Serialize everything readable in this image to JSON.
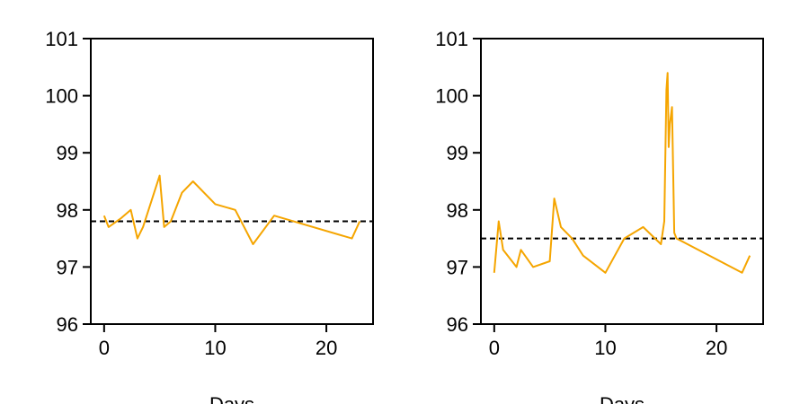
{
  "chart_data": [
    {
      "type": "line",
      "xlabel": "Days",
      "ylabel": "",
      "xlim": [
        -1.2,
        24.2
      ],
      "ylim": [
        96,
        101
      ],
      "xticks": [
        "0",
        "10",
        "20"
      ],
      "yticks": [
        "96",
        "97",
        "98",
        "99",
        "100",
        "101"
      ],
      "grid": false,
      "line_color": "#f5a500",
      "reference_color": "#000000",
      "reference_value": 97.8,
      "series": [
        {
          "x": [
            0,
            0.4,
            1.5,
            2.4,
            3.0,
            3.5,
            5.0,
            5.4,
            6.0,
            7.0,
            8.0,
            10.0,
            11.8,
            13.4,
            15.3,
            22.3,
            23.0
          ],
          "y": [
            97.9,
            97.7,
            97.85,
            98.0,
            97.5,
            97.7,
            98.6,
            97.7,
            97.8,
            98.3,
            98.5,
            98.1,
            98.0,
            97.4,
            97.9,
            97.5,
            97.8
          ]
        }
      ]
    },
    {
      "type": "line",
      "xlabel": "Days",
      "ylabel": "",
      "xlim": [
        -1.2,
        24.2
      ],
      "ylim": [
        96,
        101
      ],
      "xticks": [
        "0",
        "10",
        "20"
      ],
      "yticks": [
        "96",
        "97",
        "98",
        "99",
        "100",
        "101"
      ],
      "grid": false,
      "line_color": "#f5a500",
      "reference_color": "#000000",
      "reference_value": 97.5,
      "series": [
        {
          "x": [
            0,
            0.4,
            0.8,
            2.0,
            2.4,
            3.5,
            5.0,
            5.4,
            6.0,
            7.0,
            8.0,
            10.0,
            11.7,
            13.4,
            15.0,
            15.3,
            15.5,
            15.6,
            15.7,
            15.8,
            16.0,
            16.2,
            16.4,
            22.3,
            23.0
          ],
          "y": [
            96.9,
            97.8,
            97.3,
            97.0,
            97.3,
            97.0,
            97.1,
            98.2,
            97.7,
            97.5,
            97.2,
            96.9,
            97.5,
            97.7,
            97.4,
            97.8,
            100.1,
            100.4,
            99.1,
            99.5,
            99.8,
            97.6,
            97.5,
            96.9,
            97.2
          ]
        }
      ]
    }
  ]
}
